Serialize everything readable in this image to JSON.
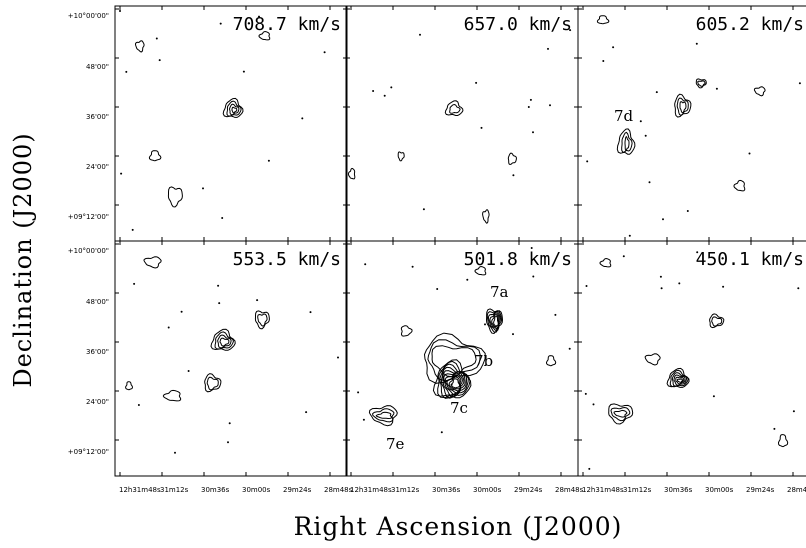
{
  "axes": {
    "ylabel": "Declination (J2000)",
    "xlabel": "Right Ascension (J2000)"
  },
  "dec_ticks": [
    "+10°00'00\"",
    "48'00\"",
    "36'00\"",
    "24'00\"",
    "+09°12'00\""
  ],
  "ra_ticks": [
    "12h31m48s",
    "31m12s",
    "30m36s",
    "30m00s",
    "29m24s",
    "28m48s"
  ],
  "panels": [
    {
      "velocity": "708.7 km/s",
      "labels": []
    },
    {
      "velocity": "657.0 km/s",
      "labels": []
    },
    {
      "velocity": "605.2 km/s",
      "labels": [
        "7d"
      ]
    },
    {
      "velocity": "553.5 km/s",
      "labels": []
    },
    {
      "velocity": "501.8 km/s",
      "labels": [
        "7a",
        "7b",
        "7c",
        "7e"
      ]
    },
    {
      "velocity": "450.1 km/s",
      "labels": []
    }
  ]
}
